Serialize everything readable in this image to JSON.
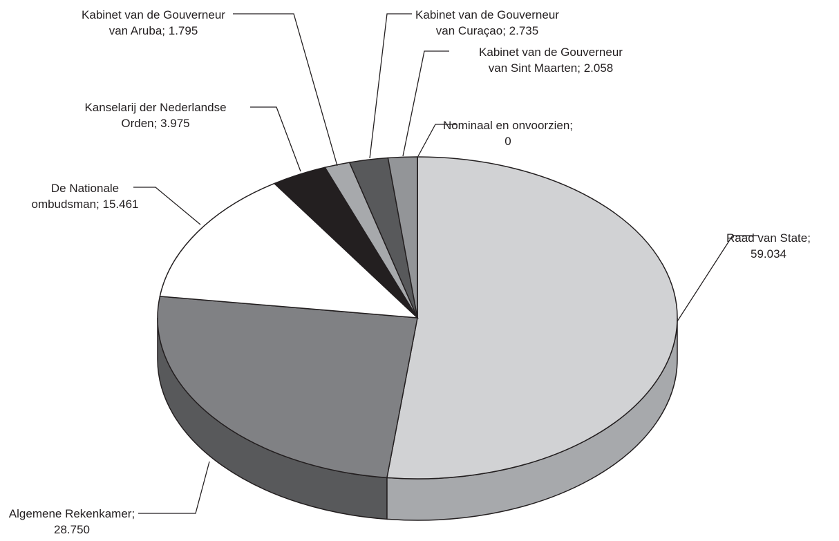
{
  "chart_data": {
    "type": "pie3d",
    "categories": [
      "Raad van State",
      "Algemene Rekenkamer",
      "De Nationale ombudsman",
      "Kanselarij der Nederlandse Orden",
      "Kabinet van de Gouverneur van Aruba",
      "Kabinet van de Gouverneur van Curaçao",
      "Kabinet van de Gouverneur van Sint Maarten",
      "Nominaal en onvoorzien"
    ],
    "values": [
      59034,
      28750,
      15461,
      3975,
      1795,
      2735,
      2058,
      0
    ],
    "value_labels": [
      "59.034",
      "28.750",
      "15.461",
      "3.975",
      "1.795",
      "2.735",
      "2.058",
      "0"
    ],
    "colors": [
      "#d1d2d4",
      "#808184",
      "#ffffff",
      "#231f20",
      "#a7a9ac",
      "#58595b",
      "#939598",
      "#bcbec0"
    ]
  }
}
